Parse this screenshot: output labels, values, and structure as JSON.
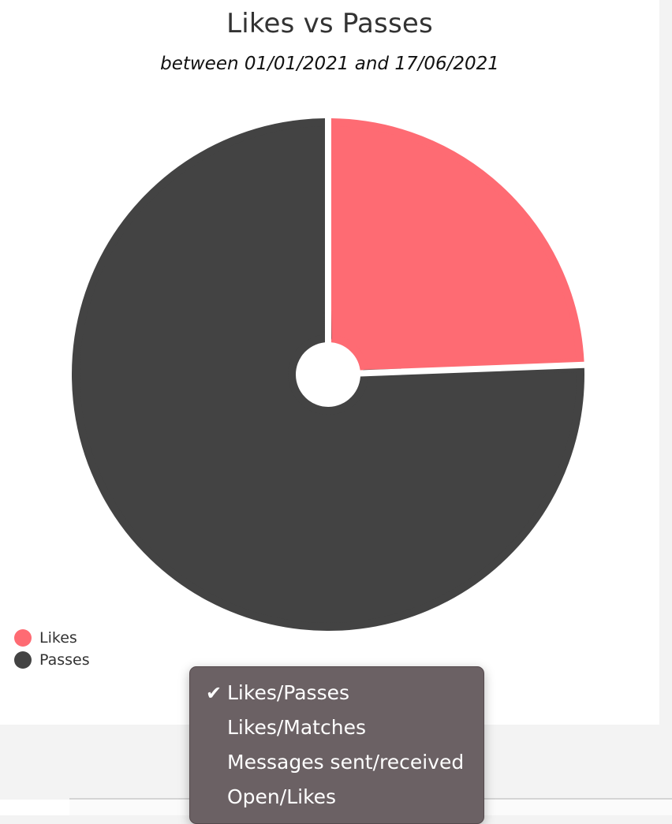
{
  "chart_data": {
    "type": "pie",
    "title": "Likes vs Passes",
    "subtitle": "between 01/01/2021 and 17/06/2021",
    "categories": [
      "Likes",
      "Passes"
    ],
    "values": [
      24.4,
      75.6
    ],
    "value_unit": "percent",
    "colors": [
      "#fe6b73",
      "#434343"
    ],
    "donut": true,
    "legend_position": "bottom-left"
  },
  "legend": {
    "items": [
      {
        "label": "Likes",
        "color": "#fe6b73"
      },
      {
        "label": "Passes",
        "color": "#434343"
      }
    ]
  },
  "chart_selector": {
    "selected": "Likes/Passes",
    "check_glyph": "✔",
    "options": [
      {
        "label": "Likes/Passes",
        "checked": true
      },
      {
        "label": "Likes/Matches",
        "checked": false
      },
      {
        "label": "Messages sent/received",
        "checked": false
      },
      {
        "label": "Open/Likes",
        "checked": false
      }
    ]
  }
}
